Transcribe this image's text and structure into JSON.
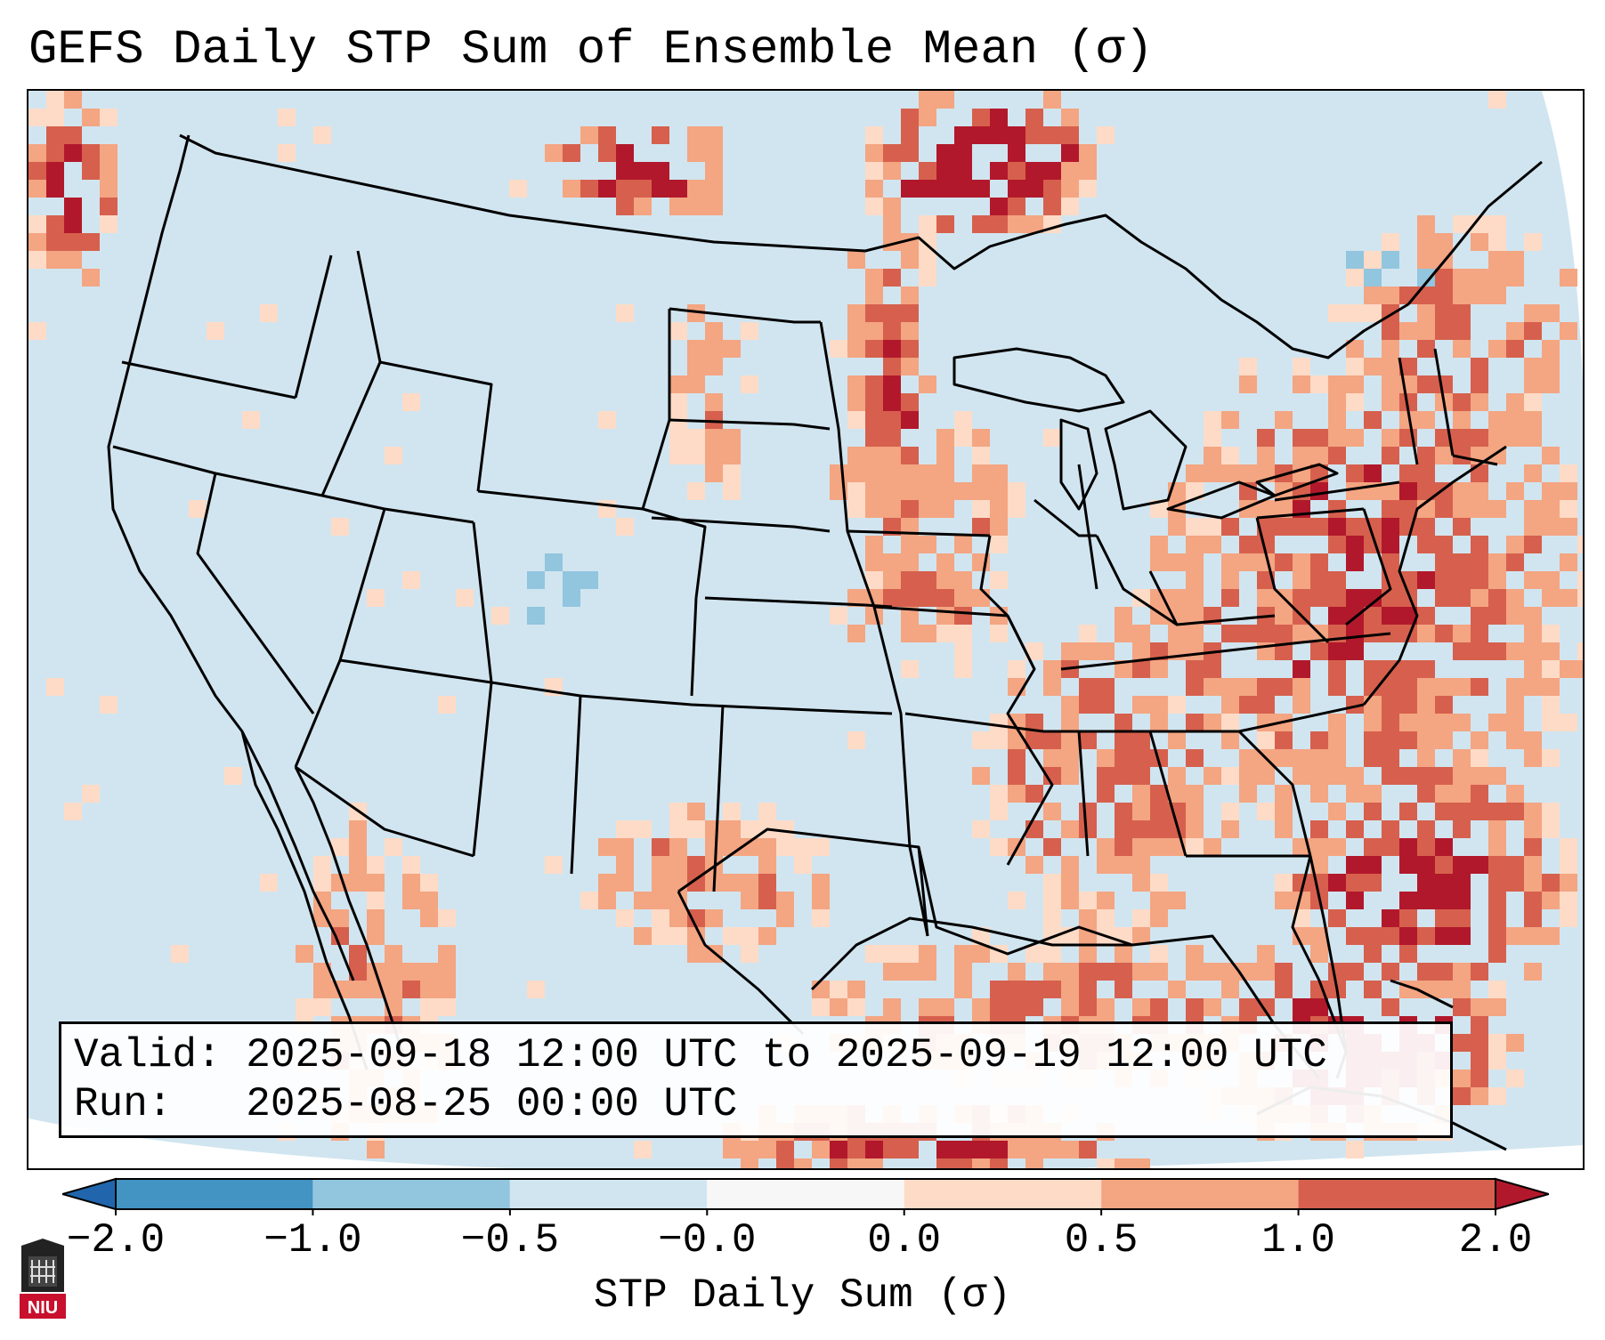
{
  "title": "GEFS Daily STP Sum of Ensemble Mean (σ)",
  "info": {
    "valid": "Valid: 2025-09-18 12:00 UTC to 2025-09-19 12:00 UTC",
    "run": "Run:   2025-08-25 00:00 UTC"
  },
  "colorbar": {
    "label": "STP Daily Sum (σ)",
    "ticks": [
      "−2.0",
      "−1.0",
      "−0.5",
      "−0.0",
      "0.0",
      "0.5",
      "1.0",
      "2.0"
    ],
    "bins": [
      {
        "from": -2.0,
        "to": -1.0,
        "color": "#4393c3"
      },
      {
        "from": -1.0,
        "to": -0.5,
        "color": "#92c5de"
      },
      {
        "from": -0.5,
        "to": -0.0,
        "color": "#d1e5f0"
      },
      {
        "from": -0.0,
        "to": 0.0,
        "color": "#f7f7f7"
      },
      {
        "from": 0.0,
        "to": 0.5,
        "color": "#fddbc7"
      },
      {
        "from": 0.5,
        "to": 1.0,
        "color": "#f4a582"
      },
      {
        "from": 1.0,
        "to": 2.0,
        "color": "#d6604d"
      }
    ],
    "under_color": "#2166ac",
    "over_color": "#b2182b",
    "extend": "both"
  },
  "map": {
    "region": "Continental United States",
    "background_color": "#d1e5f0",
    "outside_color": "#ffffff",
    "strong_color": "#b2182b",
    "medium_color": "#d6604d",
    "light_color": "#f4a582",
    "faint_color": "#fddbc7",
    "negative_color": "#92c5de"
  },
  "logo": {
    "text": "NIU",
    "color": "#c8102e"
  }
}
